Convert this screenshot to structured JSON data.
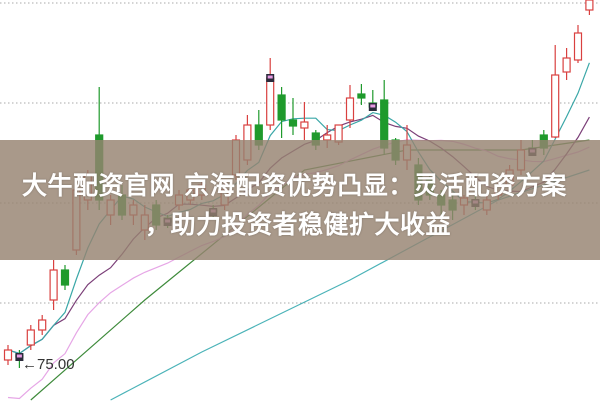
{
  "banner": {
    "line1": "大牛配资官网 京海配资优势凸显：灵活配资方案",
    "line2": "，助力投资者稳健扩大收益"
  },
  "chart_data": {
    "type": "candlestick",
    "title": "",
    "ylim": [
      70,
      112
    ],
    "gridlines": [
      111.5,
      101.5,
      91.5,
      81.5
    ],
    "grid": "dotted horizontal",
    "low_annotation": "75.00",
    "colors": {
      "up": "#d9403f",
      "down": "#1f9a2c",
      "ma_short": "#3aa7a7",
      "ma_mid": "#7b3f78",
      "ma_long": "#e6a6e6",
      "ma_green": "#3d8a3a",
      "ma_cyan": "#4bb3b8",
      "marker": "#2a2a3a"
    },
    "candles": [
      [
        75.8,
        76.8,
        77.3,
        75.3
      ],
      [
        76.3,
        76.1,
        76.8,
        75.0
      ],
      [
        77.3,
        78.8,
        79.3,
        76.8
      ],
      [
        78.8,
        79.8,
        80.3,
        78.3
      ],
      [
        81.8,
        84.8,
        85.8,
        80.8
      ],
      [
        84.8,
        83.3,
        85.3,
        82.8
      ],
      [
        86.8,
        92.8,
        93.3,
        86.3
      ],
      [
        91.8,
        94.3,
        94.8,
        90.8
      ],
      [
        98.3,
        91.8,
        103.1,
        90.8
      ],
      [
        90.3,
        91.8,
        92.3,
        89.3
      ],
      [
        92.3,
        90.3,
        93.3,
        89.8
      ],
      [
        90.3,
        91.3,
        91.8,
        89.3
      ],
      [
        88.8,
        90.3,
        91.3,
        87.8
      ],
      [
        91.3,
        89.3,
        91.8,
        88.8
      ],
      [
        90.0,
        89.6,
        90.3,
        89.0
      ],
      [
        91.3,
        92.3,
        92.8,
        90.8
      ],
      [
        91.8,
        92.8,
        93.3,
        91.3
      ],
      [
        92.3,
        93.3,
        93.8,
        91.8
      ],
      [
        90.8,
        90.6,
        91.3,
        90.0
      ],
      [
        91.3,
        92.8,
        93.8,
        90.8
      ],
      [
        94.3,
        97.8,
        98.3,
        93.8
      ],
      [
        95.8,
        99.3,
        100.3,
        95.3
      ],
      [
        99.3,
        97.3,
        100.8,
        96.8
      ],
      [
        99.3,
        104.0,
        106.0,
        98.8
      ],
      [
        102.3,
        99.8,
        103.1,
        98.0
      ],
      [
        99.8,
        99.2,
        102.0,
        98.3
      ],
      [
        99.0,
        99.6,
        101.6,
        97.8
      ],
      [
        98.5,
        97.3,
        98.8,
        96.8
      ],
      [
        97.8,
        98.3,
        99.3,
        97.0
      ],
      [
        97.6,
        99.3,
        99.3,
        97.3
      ],
      [
        99.8,
        102.0,
        103.3,
        99.0
      ],
      [
        102.4,
        102.0,
        103.4,
        101.3
      ],
      [
        101.5,
        101.1,
        102.8,
        100.8
      ],
      [
        101.8,
        97.0,
        103.8,
        96.3
      ],
      [
        97.8,
        95.8,
        98.0,
        95.3
      ],
      [
        95.8,
        97.3,
        99.3,
        94.8
      ],
      [
        95.3,
        91.8,
        96.0,
        91.3
      ],
      [
        93.8,
        92.3,
        94.3,
        91.8
      ],
      [
        92.3,
        91.3,
        92.8,
        90.3
      ],
      [
        91.8,
        90.8,
        92.3,
        89.8
      ],
      [
        91.3,
        92.0,
        92.3,
        90.3
      ],
      [
        91.8,
        91.5,
        92.3,
        90.8
      ],
      [
        90.8,
        91.8,
        92.3,
        90.3
      ],
      [
        92.3,
        93.3,
        93.8,
        91.8
      ],
      [
        93.3,
        94.8,
        95.3,
        92.8
      ],
      [
        94.8,
        96.8,
        97.8,
        94.3
      ],
      [
        97.0,
        96.6,
        97.8,
        96.3
      ],
      [
        98.3,
        97.0,
        98.8,
        96.3
      ],
      [
        98.1,
        104.3,
        107.3,
        98.0
      ],
      [
        104.6,
        106.0,
        107.0,
        103.8
      ],
      [
        105.8,
        108.5,
        109.3,
        105.5
      ],
      [
        110.8,
        111.8,
        111.8,
        110.3
      ]
    ],
    "candle_fields": [
      "open",
      "close",
      "high",
      "low"
    ],
    "markers": [
      1,
      14,
      18,
      23,
      32,
      41,
      46
    ],
    "ma_green": [
      [
        2,
        71.8
      ],
      [
        12,
        81.8
      ],
      [
        26,
        94.8
      ],
      [
        35,
        96.8
      ],
      [
        45,
        96.8
      ],
      [
        51,
        97.8
      ]
    ],
    "ma_cyan": [
      [
        9,
        71.8
      ],
      [
        17,
        76.6
      ],
      [
        30,
        83.8
      ],
      [
        43,
        91.8
      ],
      [
        51,
        94.8
      ]
    ]
  }
}
